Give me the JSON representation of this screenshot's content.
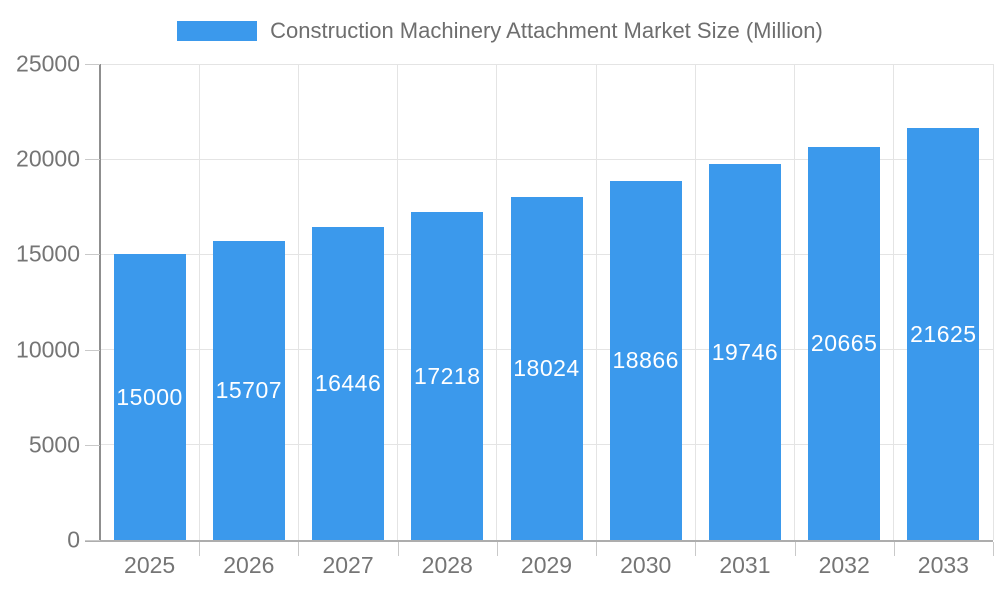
{
  "chart_data": {
    "type": "bar",
    "title": "Construction Machinery Attachment Market Size (Million)",
    "legend": [
      "Construction Machinery Attachment Market Size (Million)"
    ],
    "legend_position": "top",
    "categories": [
      "2025",
      "2026",
      "2027",
      "2028",
      "2029",
      "2030",
      "2031",
      "2032",
      "2033"
    ],
    "values": [
      15000,
      15707,
      16446,
      17218,
      18024,
      18866,
      19746,
      20665,
      21625
    ],
    "xlabel": "",
    "ylabel": "",
    "ylim": [
      0,
      25000
    ],
    "yticks": [
      0,
      5000,
      10000,
      15000,
      20000,
      25000
    ],
    "grid": true,
    "value_labels": "inside-center"
  },
  "colors": {
    "bar": "#3b99ec",
    "value_label": "#ffffff",
    "grid": "#e4e4e4",
    "tick": "#c9c9c9",
    "axis_y": "#8f8f8f",
    "axis_x": "#adadad",
    "tick_text": "#757575",
    "legend_text": "#6e6e6e",
    "background": "#ffffff"
  }
}
